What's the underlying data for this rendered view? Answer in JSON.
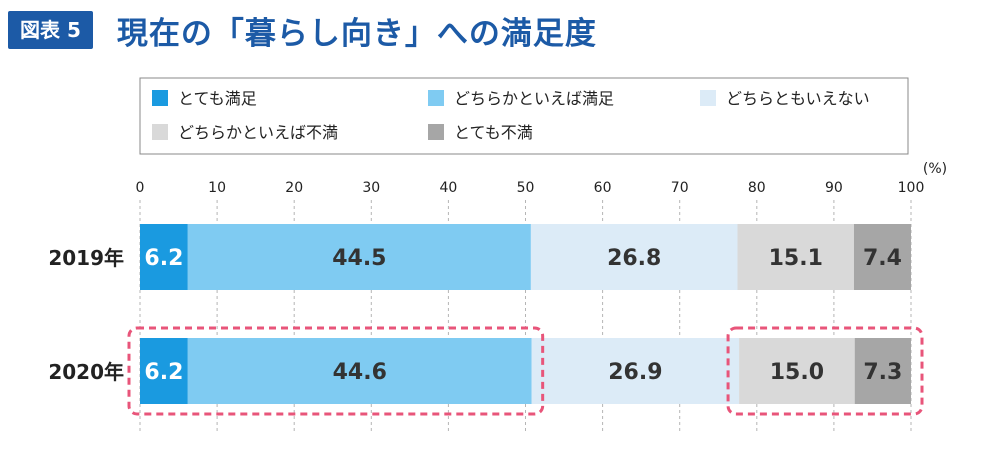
{
  "header": {
    "badge": "図表 5",
    "title": "現在の「暮らし向き」への満足度"
  },
  "chart_data": {
    "type": "bar",
    "orientation": "horizontal",
    "stacked": true,
    "unit_label": "(%)",
    "xlim": [
      0,
      100
    ],
    "ticks": [
      0,
      10,
      20,
      30,
      40,
      50,
      60,
      70,
      80,
      90,
      100
    ],
    "categories": [
      "2019年",
      "2020年"
    ],
    "series": [
      {
        "name": "とても満足",
        "color": "#1a9ae0",
        "label_color": "#ffffff",
        "values": [
          6.2,
          6.2
        ]
      },
      {
        "name": "どちらかといえば満足",
        "color": "#7fcbf2",
        "label_color": "#333333",
        "values": [
          44.5,
          44.6
        ]
      },
      {
        "name": "どちらともいえない",
        "color": "#dcebf7",
        "label_color": "#333333",
        "values": [
          26.8,
          26.9
        ]
      },
      {
        "name": "どちらかといえば不満",
        "color": "#d9d9d9",
        "label_color": "#333333",
        "values": [
          15.1,
          15.0
        ]
      },
      {
        "name": "とても不満",
        "color": "#a6a6a6",
        "label_color": "#333333",
        "values": [
          7.4,
          7.3
        ]
      }
    ],
    "legend_position": "top",
    "grid": "vertical-dashed",
    "highlight_color": "#e8557a"
  }
}
